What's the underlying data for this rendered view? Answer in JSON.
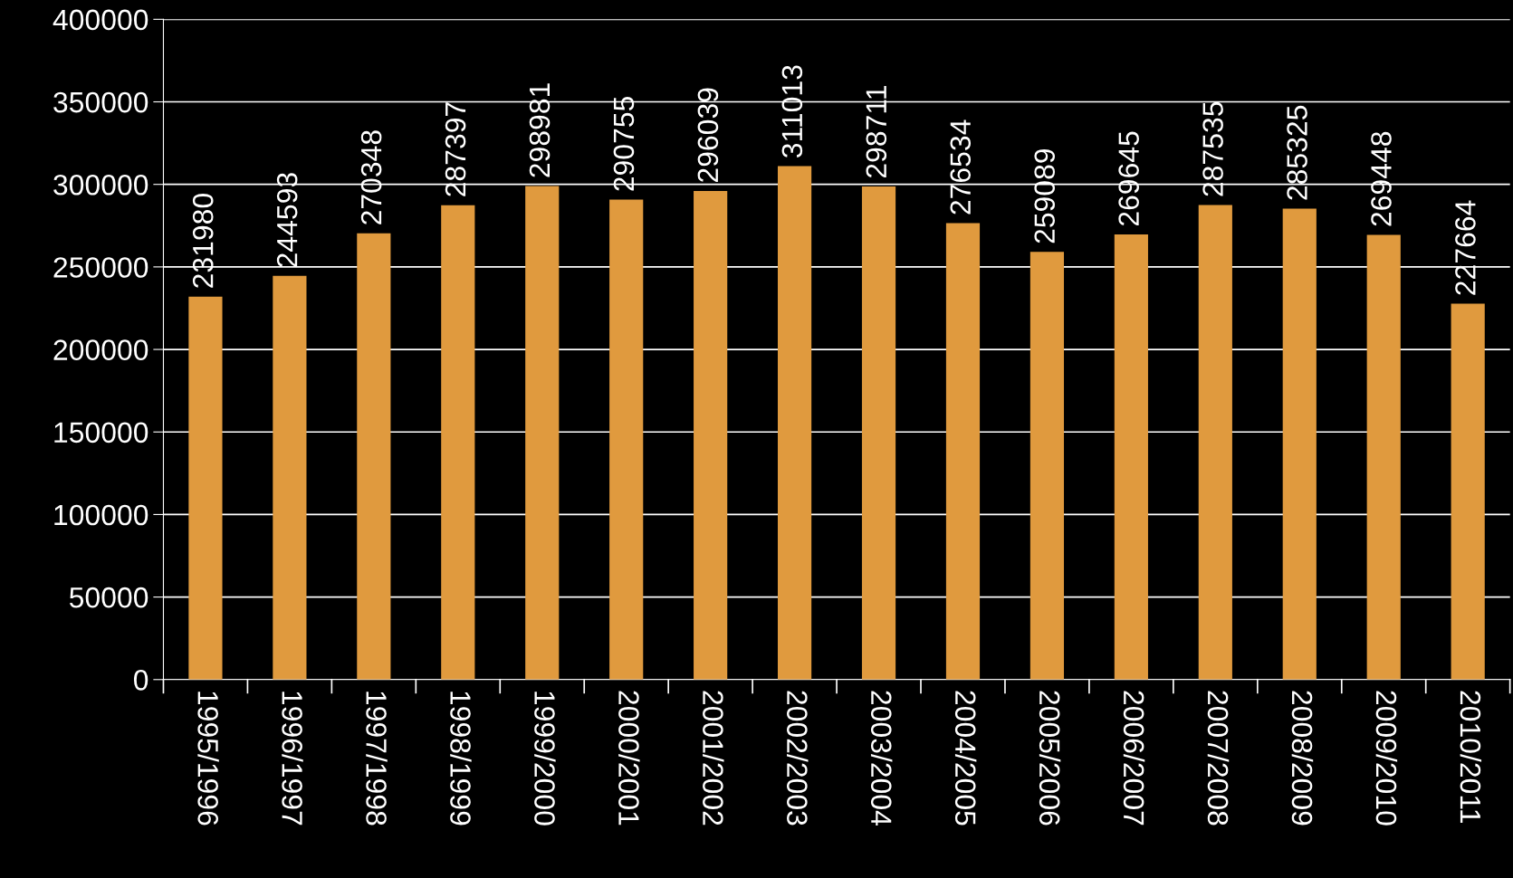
{
  "chart_data": {
    "type": "bar",
    "categories": [
      "1995/1996",
      "1996/1997",
      "1997/1998",
      "1998/1999",
      "1999/2000",
      "2000/2001",
      "2001/2002",
      "2002/2003",
      "2003/2004",
      "2004/2005",
      "2005/2006",
      "2006/2007",
      "2007/2008",
      "2008/2009",
      "2009/2010",
      "2010/2011"
    ],
    "series": [
      {
        "color": "#e09a3e",
        "values": [
          231980,
          244593,
          270348,
          287397,
          298981,
          290755,
          296039,
          311013,
          298711,
          276534,
          259089,
          269645,
          287535,
          285325,
          269448,
          227664
        ]
      }
    ],
    "ylim": [
      0,
      400000
    ],
    "yticks": [
      0,
      50000,
      100000,
      150000,
      200000,
      250000,
      300000,
      350000,
      400000
    ],
    "grid": "y",
    "data_labels": true
  }
}
